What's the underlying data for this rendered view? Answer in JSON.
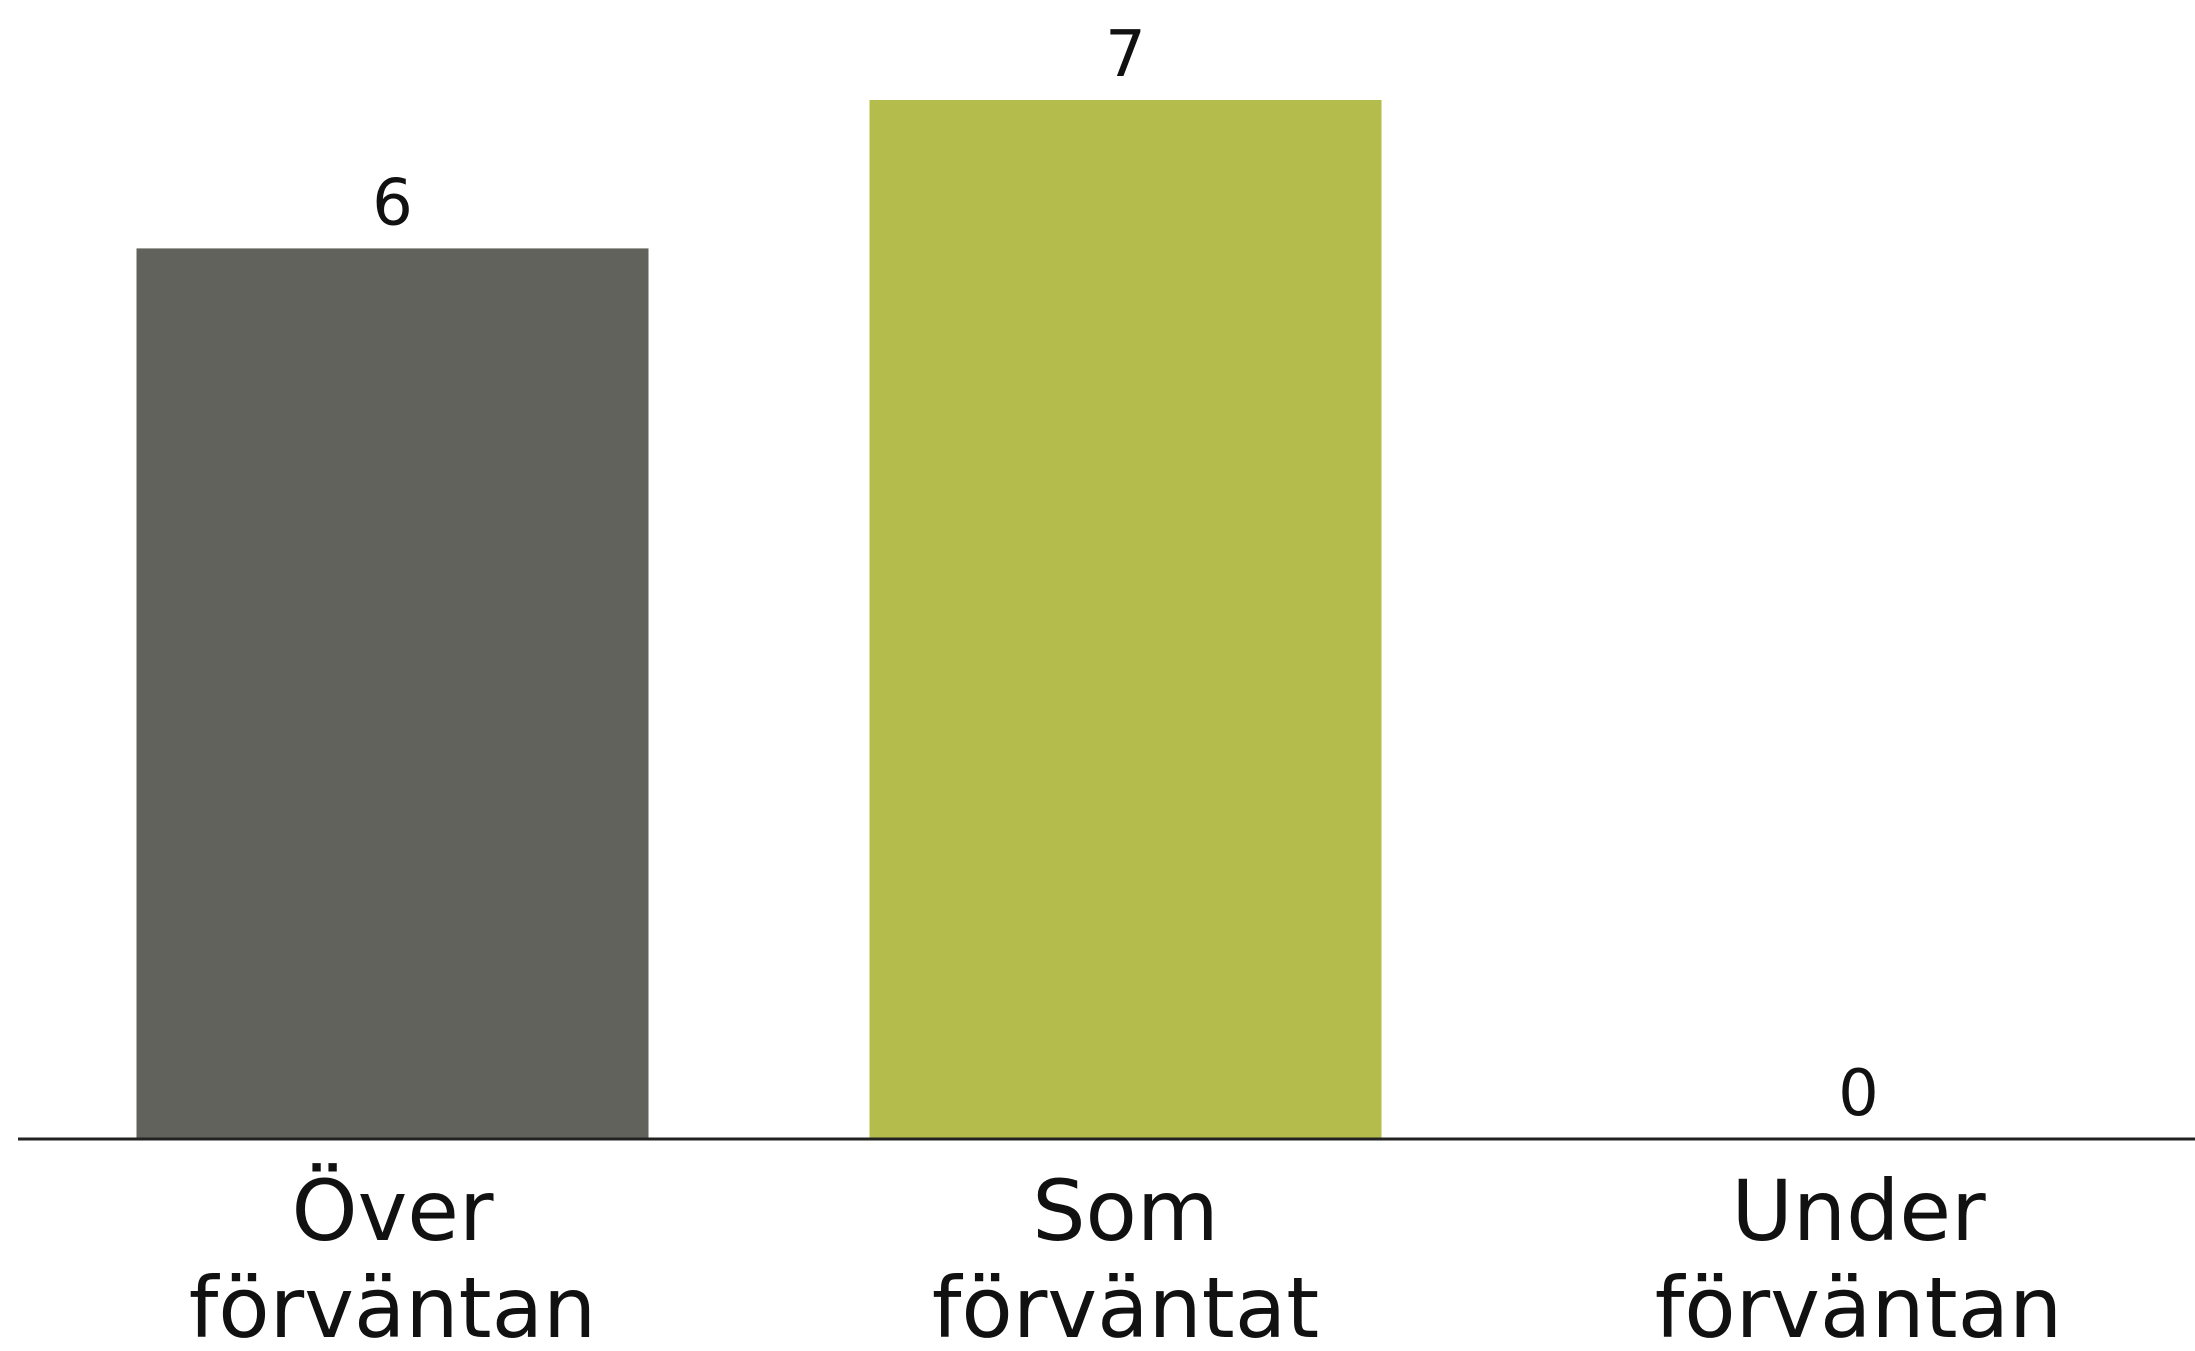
{
  "chart_data": {
    "type": "bar",
    "title": "",
    "xlabel": "",
    "ylabel": "",
    "categories": [
      [
        "Över",
        "förväntan"
      ],
      [
        "Som",
        "förväntat"
      ],
      [
        "Under",
        "förväntan"
      ]
    ],
    "values": [
      6,
      7,
      0
    ],
    "ylim": [
      0,
      7
    ],
    "grid": false,
    "legend": "none",
    "colors": [
      "#61625b",
      "#b4bd4b",
      "#b4bd4b"
    ],
    "axis_color": "#222222",
    "label_color": "#111111"
  }
}
